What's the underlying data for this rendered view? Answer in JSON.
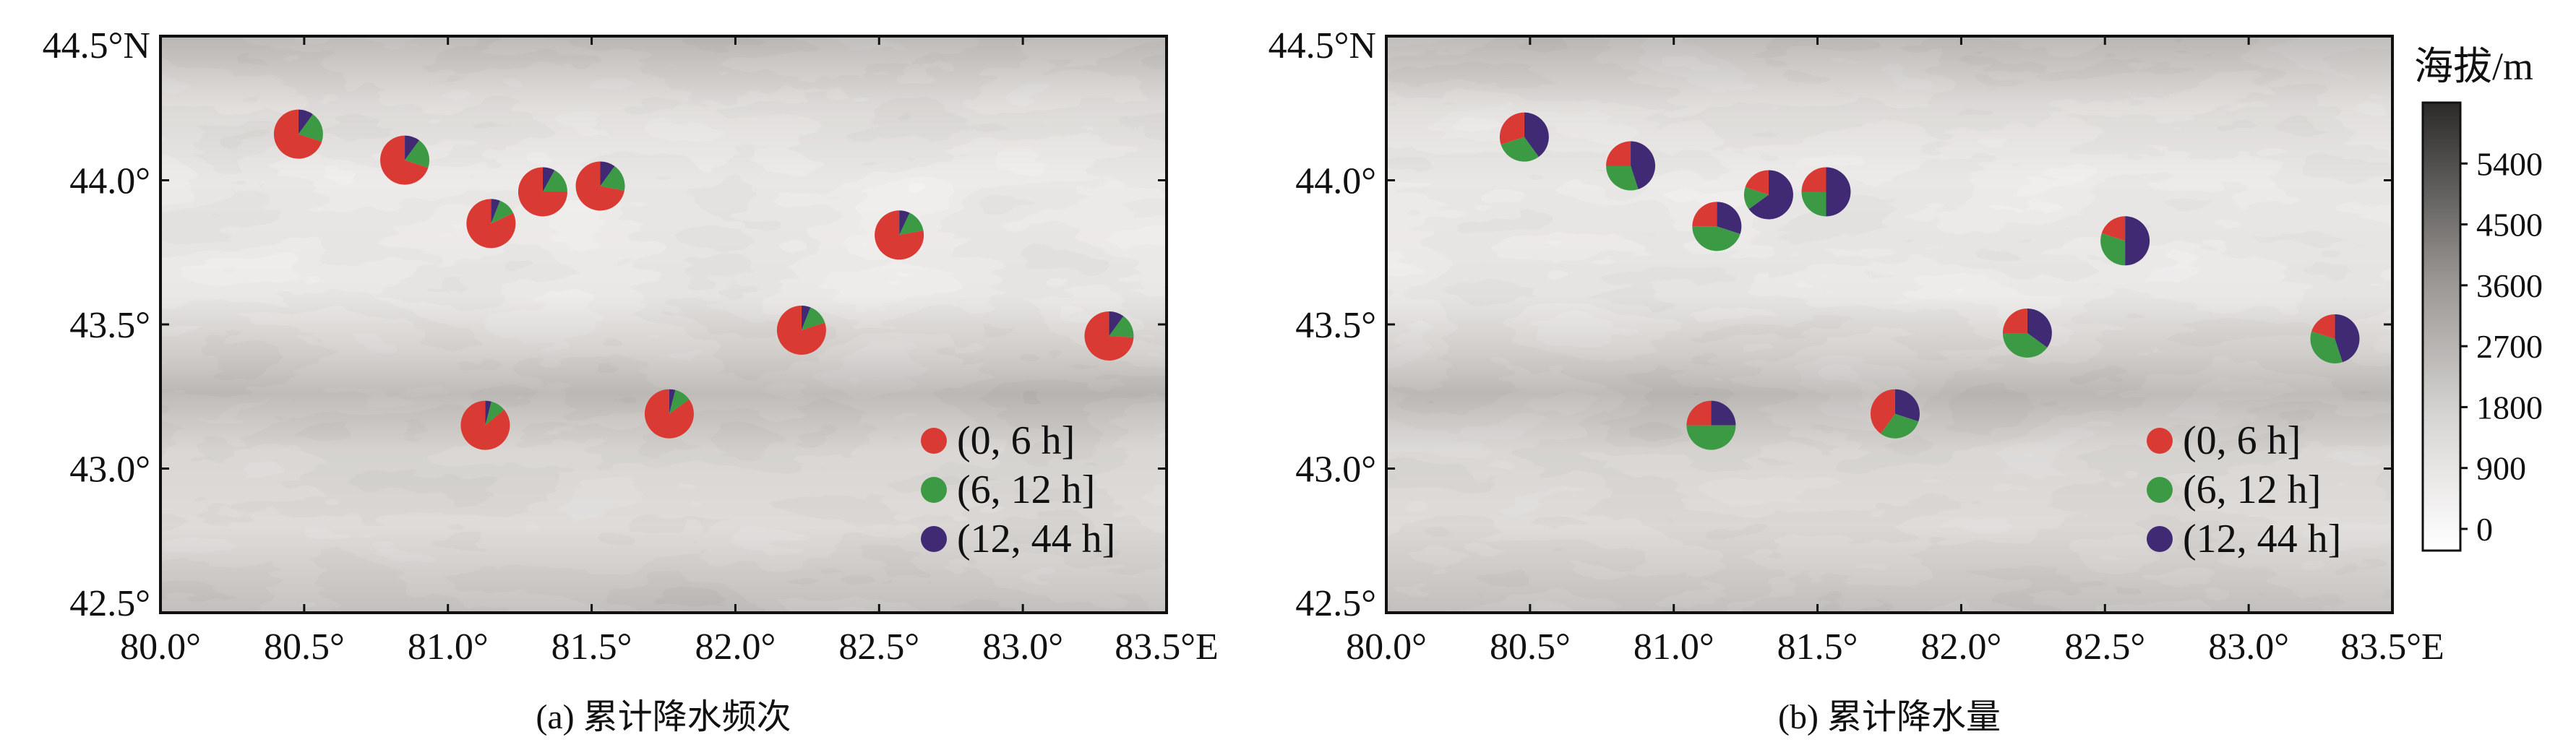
{
  "colors": {
    "short": "#d93a33",
    "medium": "#3c9a45",
    "long": "#3f2a73",
    "frame": "#111111"
  },
  "axes": {
    "xlim": [
      80.0,
      83.5
    ],
    "ylim": [
      42.5,
      44.5
    ],
    "xticks": [
      80.0,
      80.5,
      81.0,
      81.5,
      82.0,
      82.5,
      83.0,
      83.5
    ],
    "yticks": [
      42.5,
      43.0,
      43.5,
      44.0,
      44.5
    ],
    "xtick_labels": [
      "80.0°",
      "80.5°",
      "81.0°",
      "81.5°",
      "82.0°",
      "82.5°",
      "83.0°",
      "83.5°E"
    ],
    "ytick_labels": [
      "42.5°",
      "43.0°",
      "43.5°",
      "44.0°",
      "44.5°N"
    ]
  },
  "legend": {
    "placement": "lower-right",
    "entries": [
      {
        "label": "(0, 6 h]",
        "color": "#d93a33"
      },
      {
        "label": "(6, 12 h]",
        "color": "#3c9a45"
      },
      {
        "label": "(12, 44 h]",
        "color": "#3f2a73"
      }
    ]
  },
  "colorbar": {
    "title": "海拔/m",
    "ticks": [
      0,
      900,
      1800,
      2700,
      3600,
      4500,
      5400
    ],
    "tick_labels": [
      "0",
      "900",
      "1800",
      "2700",
      "3600",
      "4500",
      "5400"
    ],
    "range": [
      0,
      6300
    ],
    "color_low": "#ffffff",
    "color_high": "#2b2a29"
  },
  "chart_data": [
    {
      "type": "pie",
      "panel": "a",
      "title": "(a) 累计降水频次",
      "series_labels": [
        "(0, 6 h]",
        "(6, 12 h]",
        "(12, 44 h]"
      ],
      "stations": [
        {
          "lon": 80.48,
          "lat": 44.16,
          "fractions": [
            0.7,
            0.2,
            0.1
          ]
        },
        {
          "lon": 80.85,
          "lat": 44.07,
          "fractions": [
            0.7,
            0.2,
            0.1
          ]
        },
        {
          "lon": 81.15,
          "lat": 43.85,
          "fractions": [
            0.82,
            0.12,
            0.06
          ]
        },
        {
          "lon": 81.33,
          "lat": 43.96,
          "fractions": [
            0.75,
            0.17,
            0.08
          ]
        },
        {
          "lon": 81.53,
          "lat": 43.98,
          "fractions": [
            0.72,
            0.18,
            0.1
          ]
        },
        {
          "lon": 82.57,
          "lat": 43.81,
          "fractions": [
            0.78,
            0.15,
            0.07
          ]
        },
        {
          "lon": 82.23,
          "lat": 43.48,
          "fractions": [
            0.8,
            0.14,
            0.06
          ]
        },
        {
          "lon": 83.3,
          "lat": 43.46,
          "fractions": [
            0.74,
            0.16,
            0.1
          ]
        },
        {
          "lon": 81.13,
          "lat": 43.15,
          "fractions": [
            0.86,
            0.1,
            0.04
          ]
        },
        {
          "lon": 81.77,
          "lat": 43.19,
          "fractions": [
            0.85,
            0.11,
            0.04
          ]
        }
      ]
    },
    {
      "type": "pie",
      "panel": "b",
      "title": "(b) 累计降水量",
      "series_labels": [
        "(0, 6 h]",
        "(6, 12 h]",
        "(12, 44 h]"
      ],
      "stations": [
        {
          "lon": 80.48,
          "lat": 44.15,
          "fractions": [
            0.3,
            0.3,
            0.4
          ]
        },
        {
          "lon": 80.85,
          "lat": 44.05,
          "fractions": [
            0.25,
            0.3,
            0.45
          ]
        },
        {
          "lon": 81.15,
          "lat": 43.84,
          "fractions": [
            0.25,
            0.45,
            0.3
          ]
        },
        {
          "lon": 81.33,
          "lat": 43.95,
          "fractions": [
            0.2,
            0.15,
            0.65
          ]
        },
        {
          "lon": 81.53,
          "lat": 43.96,
          "fractions": [
            0.25,
            0.25,
            0.5
          ]
        },
        {
          "lon": 82.57,
          "lat": 43.79,
          "fractions": [
            0.2,
            0.3,
            0.5
          ]
        },
        {
          "lon": 82.23,
          "lat": 43.47,
          "fractions": [
            0.25,
            0.4,
            0.35
          ]
        },
        {
          "lon": 83.3,
          "lat": 43.45,
          "fractions": [
            0.2,
            0.35,
            0.45
          ]
        },
        {
          "lon": 81.13,
          "lat": 43.15,
          "fractions": [
            0.25,
            0.5,
            0.25
          ]
        },
        {
          "lon": 81.77,
          "lat": 43.19,
          "fractions": [
            0.4,
            0.3,
            0.3
          ]
        }
      ]
    }
  ]
}
